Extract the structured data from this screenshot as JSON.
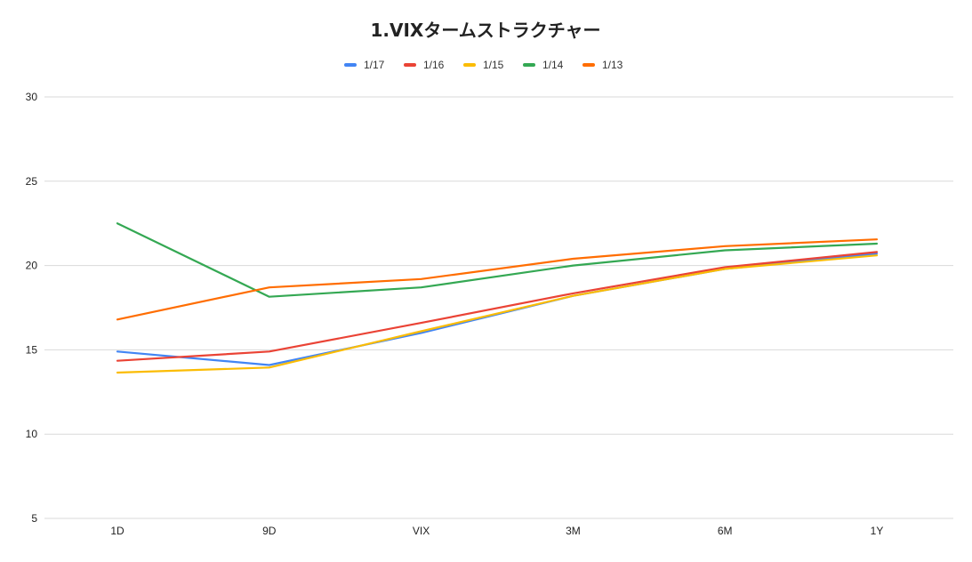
{
  "chart_data": {
    "type": "line",
    "title": "1.VIXタームストラクチャー",
    "categories": [
      "1D",
      "9D",
      "VIX",
      "3M",
      "6M",
      "1Y"
    ],
    "ylim": [
      5,
      30
    ],
    "yticks": [
      5,
      10,
      15,
      20,
      25,
      30
    ],
    "grid": true,
    "legend_position": "top",
    "series": [
      {
        "name": "1/17",
        "color": "#4285f4",
        "values": [
          14.9,
          14.1,
          16.0,
          18.2,
          19.8,
          20.7
        ]
      },
      {
        "name": "1/16",
        "color": "#ea4335",
        "values": [
          14.35,
          14.9,
          16.6,
          18.35,
          19.9,
          20.8
        ]
      },
      {
        "name": "1/15",
        "color": "#fbbc04",
        "values": [
          13.65,
          13.95,
          16.1,
          18.2,
          19.8,
          20.6
        ]
      },
      {
        "name": "1/14",
        "color": "#34a853",
        "values": [
          22.5,
          18.15,
          18.7,
          20.0,
          20.9,
          21.3
        ]
      },
      {
        "name": "1/13",
        "color": "#ff6d01",
        "values": [
          16.8,
          18.7,
          19.2,
          20.4,
          21.15,
          21.55
        ]
      }
    ]
  }
}
